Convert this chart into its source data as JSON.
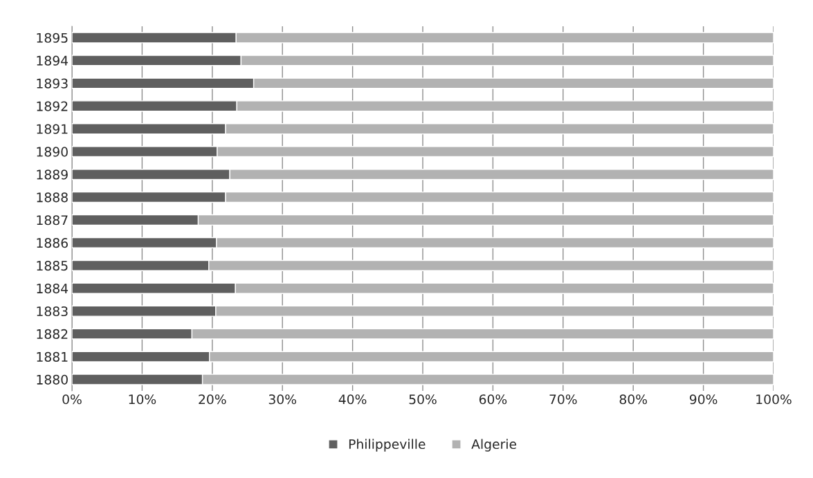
{
  "chart_data": {
    "type": "bar",
    "orientation": "horizontal",
    "stacked": true,
    "categories": [
      "1895",
      "1894",
      "1893",
      "1892",
      "1891",
      "1890",
      "1889",
      "1888",
      "1887",
      "1886",
      "1885",
      "1884",
      "1883",
      "1882",
      "1881",
      "1880"
    ],
    "series": [
      {
        "name": "Philippeville",
        "color": "#5f5f5f",
        "values": [
          23.4,
          24.1,
          25.9,
          23.5,
          21.9,
          20.7,
          22.5,
          21.9,
          18.0,
          20.6,
          19.5,
          23.3,
          20.5,
          17.1,
          19.6,
          18.6
        ]
      },
      {
        "name": "Algerie",
        "color": "#b2b2b2",
        "values": [
          76.6,
          75.9,
          74.1,
          76.5,
          78.1,
          79.3,
          77.5,
          78.1,
          82.0,
          79.4,
          80.5,
          76.7,
          79.5,
          82.9,
          80.4,
          81.4
        ]
      }
    ],
    "xlim": [
      0,
      100
    ],
    "xticks": [
      {
        "value": 0,
        "label": "0%"
      },
      {
        "value": 10,
        "label": "10%"
      },
      {
        "value": 20,
        "label": "20%"
      },
      {
        "value": 30,
        "label": "30%"
      },
      {
        "value": 40,
        "label": "40%"
      },
      {
        "value": 50,
        "label": "50%"
      },
      {
        "value": 60,
        "label": "60%"
      },
      {
        "value": 70,
        "label": "70%"
      },
      {
        "value": 80,
        "label": "80%"
      },
      {
        "value": 90,
        "label": "90%"
      },
      {
        "value": 100,
        "label": "100%"
      }
    ],
    "grid": "x",
    "legend": "bottom"
  }
}
